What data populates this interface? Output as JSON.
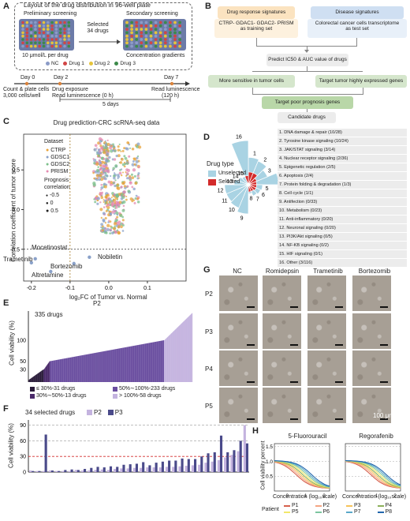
{
  "panelA": {
    "label": "A",
    "title": "Layout of the drug distribution in 96-well plate",
    "preliminary": "Preliminary screening",
    "secondary": "Secondary screening",
    "selected": "Selected\n34 drugs",
    "dose": "10 μmol/L per drug",
    "gradient": "Concentration gradients",
    "legend": [
      {
        "label": "NC",
        "color": "#8b9bc7"
      },
      {
        "label": "Drug 1",
        "color": "#d14545"
      },
      {
        "label": "Drug 2",
        "color": "#e6c43a"
      },
      {
        "label": "Drug 3",
        "color": "#3d8a4a"
      }
    ],
    "timeline": {
      "day0": "Day 0",
      "day0_desc1": "Count & plate cells",
      "day0_desc2": "3,000 cells/well",
      "day2": "Day 2",
      "day2_desc1": "Drug exposure",
      "day2_desc2": "Read luminescence (0 h)",
      "day7": "Day 7",
      "day7_desc1": "Read luminescence",
      "day7_desc2": "(120 h)",
      "span": "5 days"
    }
  },
  "panelB": {
    "label": "B",
    "drug_sig": "Drug response signatures",
    "disease_sig": "Disease signatures",
    "training": "CTRP-  GDAC1-  GDAC2-  PRISM\nas training set",
    "test": "Colorectal cancer cells transcriptome\nas test set",
    "predict": "Predict IC50 & AUC value of drugs",
    "left": "More sensitive in tumor cells",
    "right": "Target tumor highly expressed genes",
    "target": "Target poor prognosis genes",
    "candidate": "Candidate drugs"
  },
  "panelC": {
    "label": "C",
    "title": "Drug prediction-CRC scRNA-seq data",
    "ylabel": "Correlation coefficient of tumor score",
    "xlabel": "log₂FC of Tumor vs. Normal",
    "legend_title": "Dataset",
    "size_title": "Prognosis\ncorrelation",
    "annotations": [
      "Mocetinostat",
      "Trametinib",
      "Nobiletin",
      "Bortezomib",
      "Altretamine"
    ]
  },
  "panelD": {
    "label": "D",
    "legend_title": "Drug type",
    "legend": [
      {
        "label": "Unselected",
        "color": "#a9d3e3"
      },
      {
        "label": "Selected",
        "color": "#d32b2b"
      }
    ],
    "categories": [
      "1. DNA damage & repair (10/28)",
      "2. Tyrosine kinase signaling (10/24)",
      "3. JAK/STAT signaling (3/14)",
      "4. Nuclear receptor signaling (2/36)",
      "5. Epigenetic regulation (2/5)",
      "6. Apoptosis (2/4)",
      "7. Protein folding & degradation (1/3)",
      "8. Cell cycle (1/1)",
      "9. Antifection (0/33)",
      "10. Metabolism (0/23)",
      "11. Anti-inflammatory (0/20)",
      "12. Neuronal signaling (0/20)",
      "13. PI3K/Akt signaling (0/5)",
      "14. NF-KB signaling (0/2)",
      "15. HIF signaling (0/1)",
      "16. Other (3/116)"
    ]
  },
  "panelE": {
    "label": "E",
    "title": "P2",
    "count": "335 drugs",
    "ylabel": "Cell viability (%)",
    "legend": [
      {
        "label": "≤ 30%-31 drugs",
        "color": "#2a1c3a"
      },
      {
        "label": "50%∼100%-233 drugs",
        "color": "#6b4fa0"
      },
      {
        "label": "30%∼50%-13 drugs",
        "color": "#4a2a6a"
      },
      {
        "label": "> 100%-58 drugs",
        "color": "#c4b3df"
      }
    ]
  },
  "panelF": {
    "label": "F",
    "title": "34 selected drugs",
    "ylabel": "Cell viability (%)",
    "legend": [
      {
        "label": "P2",
        "color": "#c4b3df"
      },
      {
        "label": "P3",
        "color": "#4a4a8a"
      }
    ]
  },
  "panelG": {
    "label": "G",
    "cols": [
      "NC",
      "Romidepsin",
      "Trametinib",
      "Bortezomib"
    ],
    "rows": [
      "P2",
      "P3",
      "P4",
      "P5"
    ],
    "scale": "100 μm"
  },
  "panelH": {
    "label": "H",
    "left_title": "5-Fluorouracil",
    "right_title": "Regorafenib",
    "ylabel": "Cell viability percent",
    "xlabel": "Concentration (log₁₀scale)",
    "legend_title": "Patient",
    "patients": [
      {
        "label": "P1",
        "color": "#d6604d"
      },
      {
        "label": "P2",
        "color": "#f4a582"
      },
      {
        "label": "P3",
        "color": "#f7c35a"
      },
      {
        "label": "P4",
        "color": "#8cb05a"
      },
      {
        "label": "P5",
        "color": "#f2e86a"
      },
      {
        "label": "P6",
        "color": "#7cc5a0"
      },
      {
        "label": "P7",
        "color": "#5aa8c9"
      },
      {
        "label": "P8",
        "color": "#2166ac"
      }
    ]
  },
  "chart_data": [
    {
      "type": "scatter",
      "panel": "C",
      "title": "Drug prediction-CRC scRNA-seq data",
      "xlabel": "log₂FC of Tumor vs. Normal",
      "ylabel": "Correlation coefficient of tumor score",
      "xlim": [
        -0.22,
        0.2
      ],
      "ylim": [
        -0.9,
        0.95
      ],
      "x_ticks": [
        -0.2,
        -0.1,
        0.0,
        0.1
      ],
      "y_ticks": [
        -0.5,
        0.0,
        0.5
      ],
      "series": [
        {
          "name": "CTRP",
          "color": "#e8a33a"
        },
        {
          "name": "GDSC1",
          "color": "#8aa1c9"
        },
        {
          "name": "GDSC2",
          "color": "#7bbf8a"
        },
        {
          "name": "PRISM",
          "color": "#e48ab0"
        }
      ],
      "size_legend": [
        -0.5,
        0.0,
        0.5
      ],
      "thresholds": {
        "x": -0.1,
        "y": -0.5
      }
    },
    {
      "type": "bar",
      "panel": "E",
      "title": "P2",
      "ylabel": "Cell viability (%)",
      "y_ticks": [
        30,
        50,
        100
      ],
      "ylim": [
        0,
        170
      ],
      "n": 335,
      "groups": [
        {
          "name": "≤ 30%",
          "count": 31
        },
        {
          "name": "30%∼50%",
          "count": 13
        },
        {
          "name": "50%∼100%",
          "count": 233
        },
        {
          "name": "> 100%",
          "count": 58
        }
      ]
    },
    {
      "type": "bar",
      "panel": "F",
      "title": "34 selected drugs",
      "ylabel": "Cell viability (%)",
      "y_ticks": [
        0,
        30,
        60,
        90
      ],
      "ylim": [
        0,
        100
      ],
      "series": [
        {
          "name": "P2",
          "values": [
            3,
            2,
            2,
            3,
            2,
            2,
            2,
            4,
            3,
            3,
            4,
            5,
            4,
            6,
            7,
            7,
            8,
            8,
            9,
            9,
            9,
            10,
            10,
            11,
            12,
            13,
            14,
            18,
            20,
            23,
            28,
            33,
            40,
            90
          ]
        },
        {
          "name": "P3",
          "values": [
            2,
            2,
            72,
            3,
            2,
            4,
            5,
            4,
            6,
            8,
            10,
            9,
            11,
            10,
            14,
            15,
            16,
            19,
            13,
            18,
            20,
            22,
            22,
            26,
            25,
            25,
            30,
            36,
            38,
            70,
            38,
            42,
            60,
            55
          ]
        }
      ]
    },
    {
      "type": "line",
      "panel": "H",
      "title": "5-Fluorouracil",
      "xlabel": "Concentration (log₁₀scale)",
      "ylabel": "Cell viability percent",
      "xlim": [
        -0.7,
        2.3
      ],
      "ylim": [
        0,
        1.6
      ],
      "x_ticks": [
        0,
        1,
        2
      ],
      "y_ticks": [
        0.5,
        1.0,
        1.5
      ]
    },
    {
      "type": "line",
      "panel": "H",
      "title": "Regorafenib",
      "xlabel": "Concentration (log₁₀scale)",
      "xlim": [
        -0.7,
        2.3
      ],
      "ylim": [
        0,
        1.6
      ],
      "x_ticks": [
        0,
        1,
        2
      ],
      "y_ticks": [
        0.5,
        1.0,
        1.5
      ]
    }
  ]
}
